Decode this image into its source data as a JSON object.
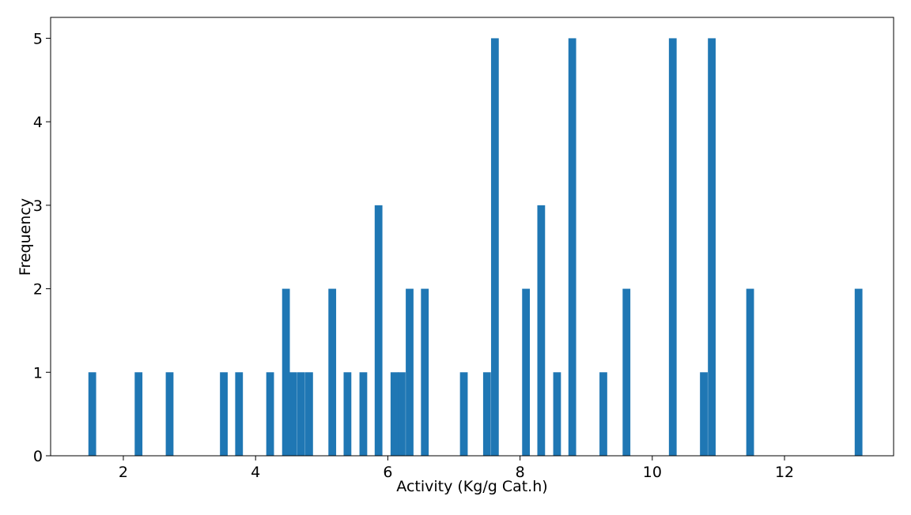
{
  "chart_data": {
    "type": "bar",
    "subtype": "histogram",
    "title": "",
    "xlabel": "Activity (Kg/g Cat.h)",
    "ylabel": "Frequency",
    "xlim": [
      0.9,
      13.65
    ],
    "ylim": [
      0,
      5.25
    ],
    "xticks": [
      2,
      4,
      6,
      8,
      10,
      12
    ],
    "yticks": [
      0,
      1,
      2,
      3,
      4,
      5
    ],
    "bin_width": 0.117,
    "grid": false,
    "legend": "none",
    "bar_color": "#1f77b4",
    "bins": [
      {
        "x": 1.53,
        "count": 1
      },
      {
        "x": 2.23,
        "count": 1
      },
      {
        "x": 2.7,
        "count": 1
      },
      {
        "x": 3.52,
        "count": 1
      },
      {
        "x": 3.75,
        "count": 1
      },
      {
        "x": 4.22,
        "count": 1
      },
      {
        "x": 4.46,
        "count": 2
      },
      {
        "x": 4.57,
        "count": 1
      },
      {
        "x": 4.69,
        "count": 1
      },
      {
        "x": 4.81,
        "count": 1
      },
      {
        "x": 5.16,
        "count": 2
      },
      {
        "x": 5.39,
        "count": 1
      },
      {
        "x": 5.63,
        "count": 1
      },
      {
        "x": 5.86,
        "count": 3
      },
      {
        "x": 6.1,
        "count": 1
      },
      {
        "x": 6.21,
        "count": 1
      },
      {
        "x": 6.33,
        "count": 2
      },
      {
        "x": 6.56,
        "count": 2
      },
      {
        "x": 7.15,
        "count": 1
      },
      {
        "x": 7.5,
        "count": 1
      },
      {
        "x": 7.62,
        "count": 5
      },
      {
        "x": 8.09,
        "count": 2
      },
      {
        "x": 8.32,
        "count": 3
      },
      {
        "x": 8.56,
        "count": 1
      },
      {
        "x": 8.79,
        "count": 5
      },
      {
        "x": 9.26,
        "count": 1
      },
      {
        "x": 9.61,
        "count": 2
      },
      {
        "x": 10.31,
        "count": 5
      },
      {
        "x": 10.78,
        "count": 1
      },
      {
        "x": 10.9,
        "count": 5
      },
      {
        "x": 11.48,
        "count": 2
      },
      {
        "x": 13.12,
        "count": 2
      }
    ]
  }
}
